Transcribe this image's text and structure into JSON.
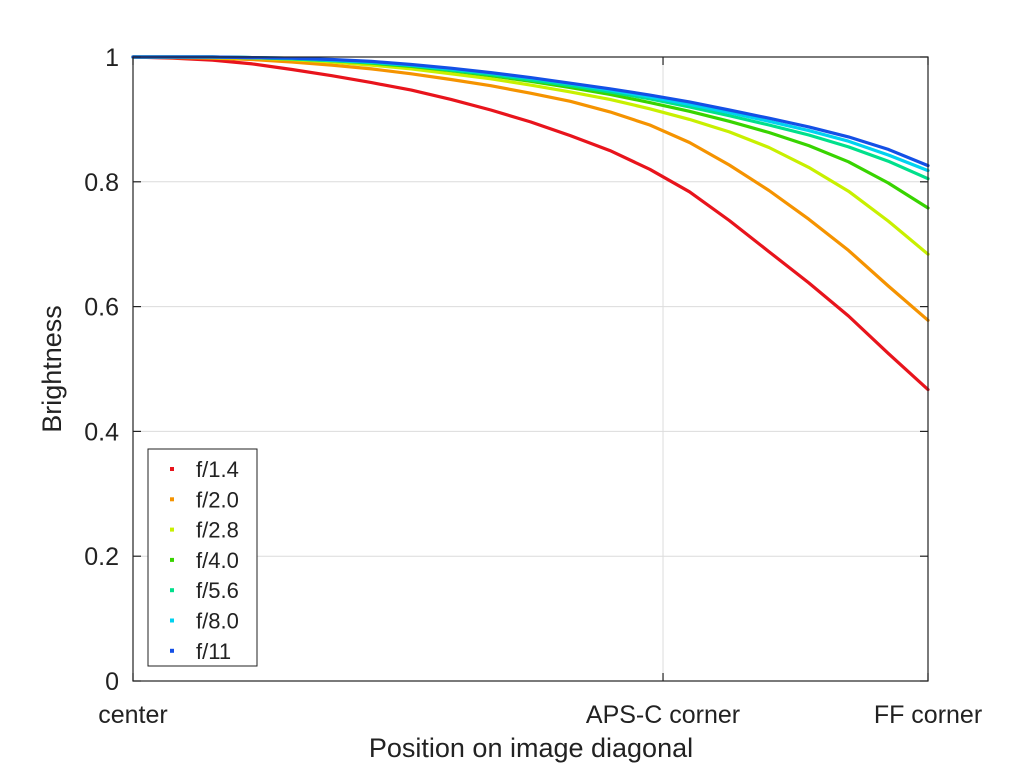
{
  "chart_data": {
    "type": "line",
    "title": "",
    "xlabel": "Position on image diagonal",
    "ylabel": "Brightness",
    "xlim": [
      0,
      1
    ],
    "ylim": [
      0,
      1
    ],
    "grid": true,
    "legend_position": "bottom-left",
    "x_ticks": [
      {
        "value": 0,
        "label": "center"
      },
      {
        "value": 0.6667,
        "label": "APS-C corner"
      },
      {
        "value": 1,
        "label": "FF corner"
      }
    ],
    "y_ticks": [
      {
        "value": 0,
        "label": "0"
      },
      {
        "value": 0.2,
        "label": "0.2"
      },
      {
        "value": 0.4,
        "label": "0.4"
      },
      {
        "value": 0.6,
        "label": "0.6"
      },
      {
        "value": 0.8,
        "label": "0.8"
      },
      {
        "value": 1,
        "label": "1"
      }
    ],
    "x": [
      0,
      0.05,
      0.1,
      0.15,
      0.2,
      0.25,
      0.3,
      0.35,
      0.4,
      0.45,
      0.5,
      0.55,
      0.6,
      0.65,
      0.7,
      0.75,
      0.8,
      0.85,
      0.9,
      0.95,
      1.0
    ],
    "series": [
      {
        "name": "f/1.4",
        "color": "#e8141c",
        "values": [
          1.0,
          0.998,
          0.995,
          0.989,
          0.98,
          0.97,
          0.959,
          0.947,
          0.932,
          0.915,
          0.896,
          0.874,
          0.85,
          0.82,
          0.784,
          0.738,
          0.688,
          0.638,
          0.585,
          0.525,
          0.467
        ]
      },
      {
        "name": "f/2.0",
        "color": "#f59300",
        "values": [
          1.0,
          0.999,
          0.998,
          0.996,
          0.992,
          0.987,
          0.981,
          0.973,
          0.964,
          0.954,
          0.942,
          0.929,
          0.912,
          0.891,
          0.863,
          0.827,
          0.786,
          0.74,
          0.69,
          0.633,
          0.578
        ]
      },
      {
        "name": "f/2.8",
        "color": "#c8f000",
        "values": [
          1.0,
          1.0,
          0.999,
          0.998,
          0.996,
          0.992,
          0.987,
          0.981,
          0.973,
          0.965,
          0.955,
          0.944,
          0.932,
          0.917,
          0.9,
          0.88,
          0.855,
          0.823,
          0.785,
          0.737,
          0.684
        ]
      },
      {
        "name": "f/4.0",
        "color": "#38d400",
        "values": [
          1.0,
          1.0,
          1.0,
          0.999,
          0.997,
          0.994,
          0.99,
          0.985,
          0.978,
          0.97,
          0.961,
          0.951,
          0.94,
          0.927,
          0.913,
          0.897,
          0.879,
          0.858,
          0.832,
          0.798,
          0.758
        ]
      },
      {
        "name": "f/5.6",
        "color": "#00e08c",
        "values": [
          1.0,
          1.0,
          1.0,
          0.999,
          0.997,
          0.994,
          0.991,
          0.986,
          0.979,
          0.972,
          0.963,
          0.954,
          0.944,
          0.933,
          0.92,
          0.906,
          0.891,
          0.875,
          0.856,
          0.833,
          0.805
        ]
      },
      {
        "name": "f/8.0",
        "color": "#00d2f0",
        "values": [
          1.0,
          1.0,
          1.0,
          0.999,
          0.998,
          0.995,
          0.992,
          0.987,
          0.981,
          0.974,
          0.966,
          0.957,
          0.947,
          0.936,
          0.924,
          0.911,
          0.897,
          0.882,
          0.865,
          0.843,
          0.818
        ]
      },
      {
        "name": "f/11",
        "color": "#1450e6",
        "values": [
          1.0,
          1.0,
          1.0,
          0.999,
          0.998,
          0.996,
          0.993,
          0.988,
          0.982,
          0.975,
          0.967,
          0.958,
          0.949,
          0.939,
          0.928,
          0.915,
          0.902,
          0.888,
          0.872,
          0.852,
          0.826
        ]
      }
    ]
  }
}
